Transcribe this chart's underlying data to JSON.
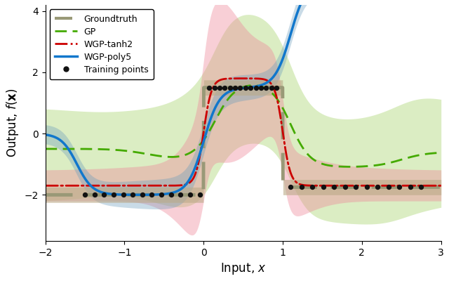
{
  "xlim": [
    -2,
    3
  ],
  "ylim": [
    -3.5,
    4.2
  ],
  "xlabel": "Input, $x$",
  "ylabel": "Output, $f(\\mathbf{x})$",
  "groundtruth_color": "#999977",
  "gp_color": "#44aa00",
  "wgp_tanh2_color": "#cc0000",
  "wgp_poly5_color": "#1177cc",
  "training_color": "#111111",
  "fill_gp_color": "#99cc55",
  "fill_wgp_tanh2_color": "#ee8899",
  "fill_wgp_poly5_color": "#6699bb",
  "fill_gt_color": "#bbaa88",
  "yticks": [
    -2,
    0,
    2,
    4
  ],
  "xticks": [
    -2,
    -1,
    0,
    1,
    2,
    3
  ]
}
